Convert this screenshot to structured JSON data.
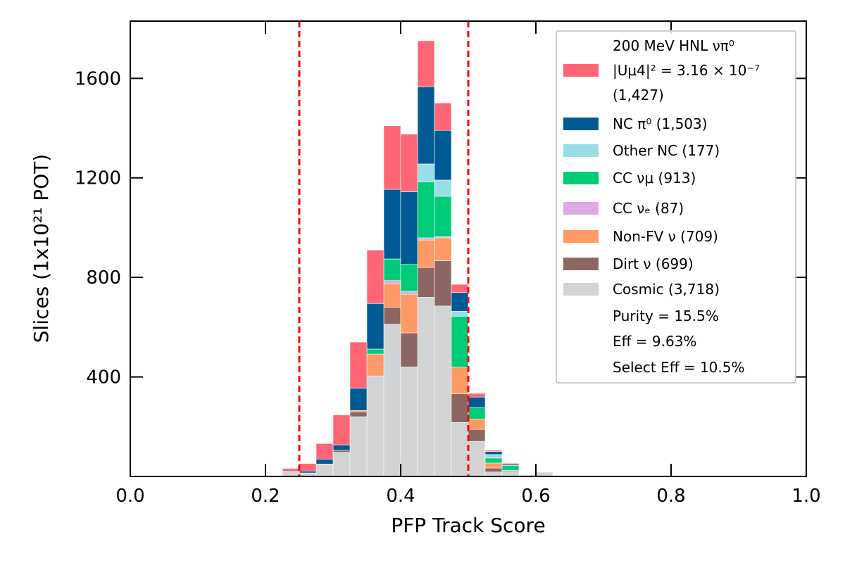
{
  "chart_data": {
    "type": "bar",
    "stacked": true,
    "xlabel": "PFP Track Score",
    "ylabel": "Slices (1x10²¹ POT)",
    "xlim": [
      0.0,
      1.0
    ],
    "ylim": [
      0,
      1830
    ],
    "xticks": [
      "0.0",
      "0.2",
      "0.4",
      "0.6",
      "0.8",
      "1.0"
    ],
    "yticks": [
      "400",
      "800",
      "1200",
      "1600"
    ],
    "cut_lines": [
      0.25,
      0.5
    ],
    "cut_line_color": "#ff0000",
    "bin_width": 0.025,
    "bin_edges_start": [
      0.225,
      0.25,
      0.275,
      0.3,
      0.325,
      0.35,
      0.375,
      0.4,
      0.425,
      0.45,
      0.475,
      0.5,
      0.525,
      0.55,
      0.575,
      0.6
    ],
    "series": [
      {
        "name": "Cosmic (3,718)",
        "color": "#d1d3d4",
        "values": [
          20,
          14,
          50,
          97,
          240,
          404,
          612,
          440,
          720,
          685,
          217,
          141,
          18,
          20,
          5,
          17
        ]
      },
      {
        "name": "Dirt ν (699)",
        "color": "#8c6661",
        "values": [
          0,
          0,
          0,
          8,
          20,
          0,
          68,
          137,
          120,
          182,
          115,
          48,
          16,
          4,
          2,
          0
        ]
      },
      {
        "name": "Non-FV ν (709)",
        "color": "#ff9966",
        "values": [
          0,
          0,
          0,
          0,
          5,
          88,
          95,
          155,
          110,
          92,
          107,
          42,
          20,
          0,
          0,
          0
        ]
      },
      {
        "name": "CC νₑ (87)",
        "color": "#dda8e3",
        "values": [
          0,
          0,
          0,
          0,
          0,
          0,
          12,
          12,
          9,
          5,
          0,
          0,
          0,
          0,
          0,
          0
        ]
      },
      {
        "name": "CC νμ (913)",
        "color": "#00cc77",
        "values": [
          0,
          0,
          0,
          0,
          0,
          20,
          87,
          108,
          225,
          162,
          205,
          46,
          20,
          20,
          0,
          0
        ]
      },
      {
        "name": "Other NC (177)",
        "color": "#99dde6",
        "values": [
          0,
          0,
          0,
          0,
          0,
          0,
          0,
          0,
          72,
          65,
          20,
          0,
          14,
          0,
          0,
          0
        ]
      },
      {
        "name": "NC π⁰ (1,503)",
        "color": "#005a94",
        "values": [
          0,
          8,
          20,
          22,
          90,
          183,
          280,
          292,
          310,
          200,
          75,
          42,
          12,
          5,
          0,
          0
        ]
      },
      {
        "name": "200 MeV HNL νπ⁰ |Uμ4|² = 3.16 × 10⁻⁷ (1,427)",
        "color": "#ff6675",
        "values": [
          12,
          30,
          62,
          120,
          185,
          215,
          255,
          232,
          185,
          110,
          33,
          15,
          5,
          4,
          0,
          0
        ]
      }
    ],
    "legend": {
      "placement": "upper right",
      "entries": [
        {
          "lines": [
            "200 MeV HNL νπ⁰",
            "|Uμ4|² = 3.16 × 10⁻⁷",
            " (1,427)"
          ],
          "color": "#ff6675"
        },
        {
          "lines": [
            "NC π⁰ (1,503)"
          ],
          "color": "#005a94"
        },
        {
          "lines": [
            "Other NC (177)"
          ],
          "color": "#99dde6"
        },
        {
          "lines": [
            "CC νμ (913)"
          ],
          "color": "#00cc77"
        },
        {
          "lines": [
            "CC νₑ (87)"
          ],
          "color": "#dda8e3"
        },
        {
          "lines": [
            "Non-FV ν (709)"
          ],
          "color": "#ff9966"
        },
        {
          "lines": [
            "Dirt ν (699)"
          ],
          "color": "#8c6661"
        },
        {
          "lines": [
            "Cosmic (3,718)"
          ],
          "color": "#d1d3d4"
        }
      ],
      "stats": [
        "Purity = 15.5%",
        "Eff = 9.63%",
        "Select Eff = 10.5%"
      ]
    }
  }
}
